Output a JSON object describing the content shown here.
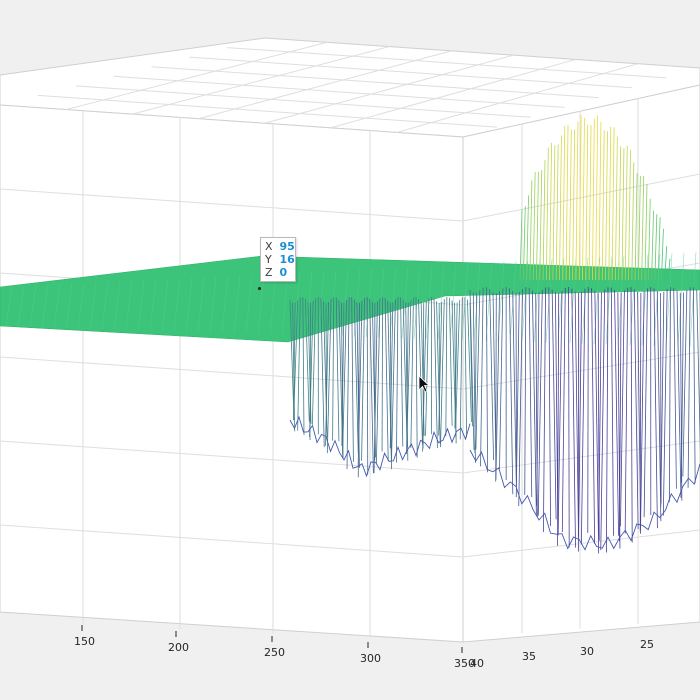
{
  "chart_data": {
    "type": "surface-mesh",
    "title": "",
    "xlabel": "",
    "ylabel": "",
    "zlabel": "",
    "x_ticks": [
      "150",
      "200",
      "250",
      "300",
      "350"
    ],
    "y_ticks": [
      "40",
      "35",
      "30",
      "25"
    ],
    "grid": true,
    "colormap": "parula",
    "baseline_z": 0,
    "datatip": {
      "x": "95",
      "y": "16",
      "z": "0"
    }
  },
  "datatip": {
    "x_label": "X",
    "y_label": "Y",
    "z_label": "Z",
    "x_value": "95",
    "y_value": "16",
    "z_value": "0"
  },
  "colors": {
    "background": "#f0f0f0",
    "axes_face": "#ffffff",
    "grid": "#dedede",
    "surface_flat": "#3bc47a",
    "surface_high": "#f5dc3a",
    "surface_low": "#4a3c9a",
    "datatip_value": "#1a8fd8"
  }
}
